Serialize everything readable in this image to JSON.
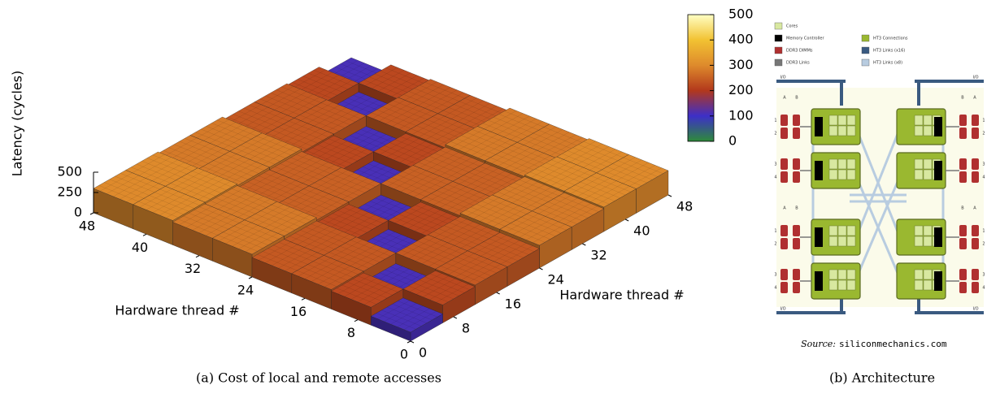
{
  "chart_data": {
    "type": "bar3d",
    "xlabel": "Hardware thread #",
    "ylabel": "Hardware thread #",
    "zlabel": "Latency (cycles)",
    "x": [
      0,
      6,
      12,
      18,
      24,
      30,
      36,
      42
    ],
    "y": [
      0,
      6,
      12,
      18,
      24,
      30,
      36,
      42
    ],
    "z": [
      [
        110,
        220,
        240,
        240,
        280,
        280,
        300,
        300
      ],
      [
        220,
        110,
        240,
        240,
        280,
        280,
        300,
        300
      ],
      [
        240,
        240,
        110,
        220,
        250,
        250,
        280,
        280
      ],
      [
        240,
        240,
        220,
        110,
        250,
        250,
        280,
        280
      ],
      [
        280,
        280,
        250,
        250,
        110,
        220,
        240,
        240
      ],
      [
        280,
        280,
        250,
        250,
        220,
        110,
        240,
        240
      ],
      [
        300,
        300,
        280,
        280,
        240,
        240,
        110,
        220
      ],
      [
        300,
        300,
        280,
        280,
        240,
        240,
        220,
        110
      ]
    ],
    "xlim": [
      0,
      48
    ],
    "ylim": [
      0,
      48
    ],
    "zlim": [
      0,
      500
    ],
    "xticks": [
      0,
      8,
      16,
      24,
      32,
      40,
      48
    ],
    "yticks": [
      0,
      8,
      16,
      24,
      32,
      40,
      48
    ],
    "zticks": [
      0,
      250,
      500
    ],
    "colorbar": {
      "clim": [
        0,
        500
      ],
      "ticks": [
        0,
        100,
        200,
        300,
        400,
        500
      ],
      "colormap": [
        "#2e8b3a",
        "#3d2fc8",
        "#b2381c",
        "#de8a2c",
        "#f2c232",
        "#ffffc4"
      ]
    },
    "caption": "(a) Cost of local and remote accesses"
  },
  "diagram": {
    "legend": [
      {
        "label": "Cores",
        "color": "#d8e8a0"
      },
      {
        "label": "Memory Controller",
        "color": "#000000"
      },
      {
        "label": "DDR3 DIMMs",
        "color": "#b03030"
      },
      {
        "label": "DDR3 Links",
        "color": "#777777"
      },
      {
        "label": "HT3 Connections",
        "color": "#9ab830"
      },
      {
        "label": "HT3 Links (x16)",
        "color": "#3a5a80"
      },
      {
        "label": "HT3 Links (x8)",
        "color": "#b8cce0"
      }
    ],
    "io_label": "I/O",
    "dimm_slots": [
      "A",
      "B"
    ],
    "dimm_rows": [
      "1",
      "2",
      "3",
      "4"
    ],
    "source_label": "Source:",
    "source_url": "siliconmechanics.com",
    "caption": "(b) Architecture"
  }
}
